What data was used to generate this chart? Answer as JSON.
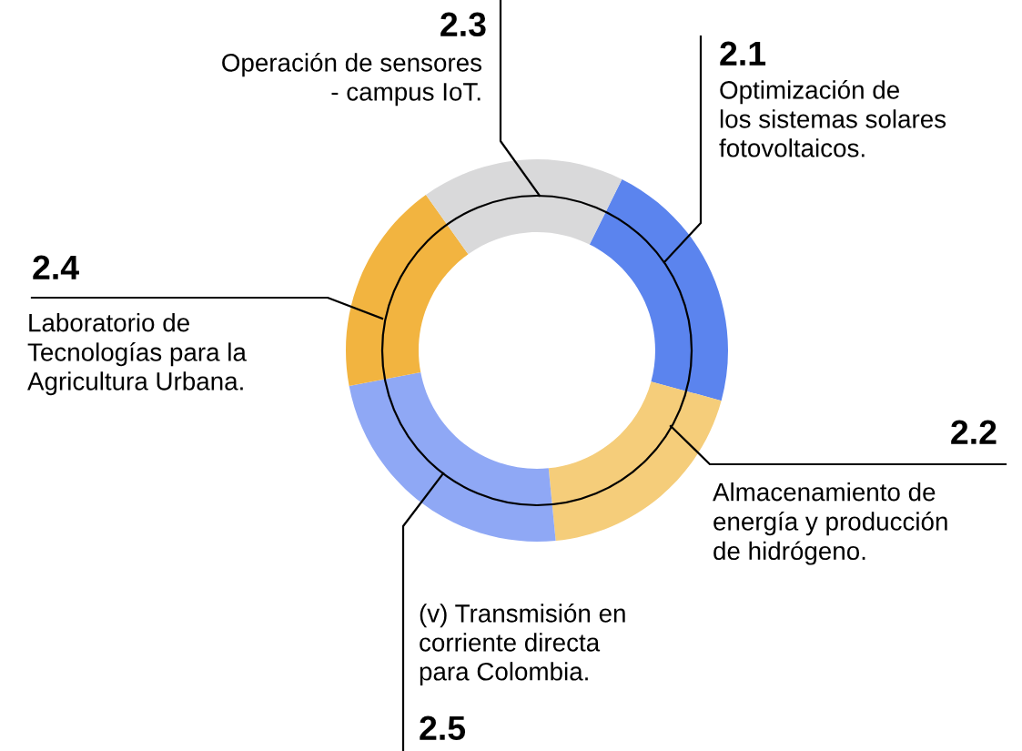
{
  "chart_data": {
    "type": "donut",
    "categories": [
      "2.1",
      "2.2",
      "2.5",
      "2.4",
      "2.3"
    ],
    "values": [
      21.9,
      19.2,
      23.6,
      18.1,
      17.2
    ],
    "colors": [
      "#5b84ee",
      "#f5cd7a",
      "#8fa8f5",
      "#f2b440",
      "#d9d9da"
    ],
    "annotations": [
      "Optimización de\nlos sistemas solares\nfotovoltaicos.",
      "Almacenamiento de\nenergía y producción\nde hidrógeno.",
      "(v) Transmisión en\ncorriente directa\npara Colombia.",
      "Laboratorio de\nTecnologías para la\nAgricultura Urbana.",
      "Operación de sensores\n- campus IoT."
    ]
  }
}
